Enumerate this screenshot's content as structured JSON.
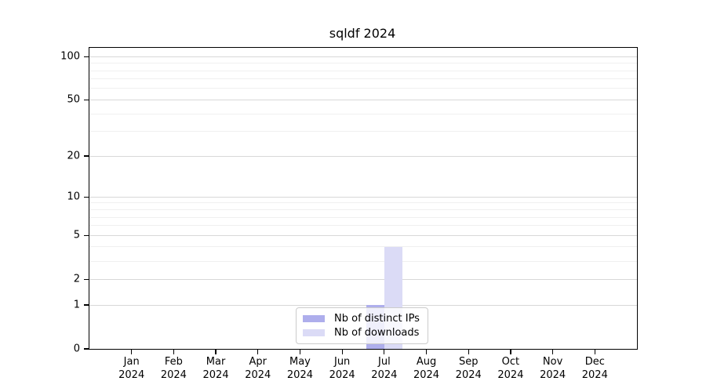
{
  "chart_data": {
    "type": "bar",
    "title": "sqldf 2024",
    "categories": [
      "Jan 2024",
      "Feb 2024",
      "Mar 2024",
      "Apr 2024",
      "May 2024",
      "Jun 2024",
      "Jul 2024",
      "Aug 2024",
      "Sep 2024",
      "Oct 2024",
      "Nov 2024",
      "Dec 2024"
    ],
    "series": [
      {
        "name": "Nb of distinct IPs",
        "color": "#aeaeec",
        "values": [
          0,
          0,
          0,
          0,
          0,
          0,
          1,
          0,
          0,
          0,
          0,
          0
        ]
      },
      {
        "name": "Nb of downloads",
        "color": "#dbdbf6",
        "values": [
          0,
          0,
          0,
          0,
          0,
          0,
          4,
          0,
          0,
          0,
          0,
          0
        ]
      }
    ],
    "xlabel": "",
    "ylabel": "",
    "yscale": "log1p",
    "ylim": [
      0,
      115
    ],
    "yticks": [
      0,
      1,
      2,
      5,
      10,
      20,
      50,
      100
    ],
    "yticks_minor": [
      3,
      4,
      6,
      7,
      8,
      9,
      30,
      40,
      60,
      70,
      80,
      90
    ],
    "grid": true,
    "legend_position": "bottom-center",
    "colors": {
      "major_grid": "#d8d8d8",
      "minor_grid": "#f0f0f0",
      "axis": "#000000",
      "background": "#ffffff"
    }
  }
}
